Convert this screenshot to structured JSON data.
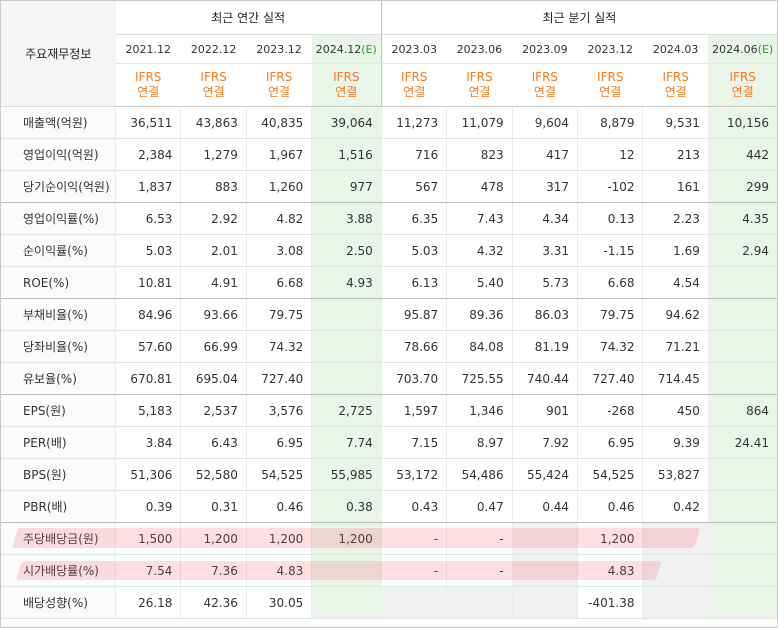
{
  "header": {
    "label": "주요재무정보",
    "annual_group": "최근 연간 실적",
    "quarter_group": "최근 분기 실적"
  },
  "periods": [
    {
      "date": "2021.12",
      "estimate": ""
    },
    {
      "date": "2022.12",
      "estimate": ""
    },
    {
      "date": "2023.12",
      "estimate": ""
    },
    {
      "date": "2024.12",
      "estimate": "(E)"
    },
    {
      "date": "2023.03",
      "estimate": ""
    },
    {
      "date": "2023.06",
      "estimate": ""
    },
    {
      "date": "2023.09",
      "estimate": ""
    },
    {
      "date": "2023.12",
      "estimate": ""
    },
    {
      "date": "2024.03",
      "estimate": ""
    },
    {
      "date": "2024.06",
      "estimate": "(E)"
    }
  ],
  "basis": {
    "line1": "IFRS",
    "line2": "연결"
  },
  "rows": [
    {
      "label": "매출액(억원)",
      "values": [
        "36,511",
        "43,863",
        "40,835",
        "39,064",
        "11,273",
        "11,079",
        "9,604",
        "8,879",
        "9,531",
        "10,156"
      ]
    },
    {
      "label": "영업이익(억원)",
      "values": [
        "2,384",
        "1,279",
        "1,967",
        "1,516",
        "716",
        "823",
        "417",
        "12",
        "213",
        "442"
      ]
    },
    {
      "label": "당기순이익(억원)",
      "values": [
        "1,837",
        "883",
        "1,260",
        "977",
        "567",
        "478",
        "317",
        "-102",
        "161",
        "299"
      ]
    },
    {
      "label": "영업이익률(%)",
      "values": [
        "6.53",
        "2.92",
        "4.82",
        "3.88",
        "6.35",
        "7.43",
        "4.34",
        "0.13",
        "2.23",
        "4.35"
      ]
    },
    {
      "label": "순이익률(%)",
      "values": [
        "5.03",
        "2.01",
        "3.08",
        "2.50",
        "5.03",
        "4.32",
        "3.31",
        "-1.15",
        "1.69",
        "2.94"
      ]
    },
    {
      "label": "ROE(%)",
      "values": [
        "10.81",
        "4.91",
        "6.68",
        "4.93",
        "6.13",
        "5.40",
        "5.73",
        "6.68",
        "4.54",
        ""
      ]
    },
    {
      "label": "부채비율(%)",
      "values": [
        "84.96",
        "93.66",
        "79.75",
        "",
        "95.87",
        "89.36",
        "86.03",
        "79.75",
        "94.62",
        ""
      ]
    },
    {
      "label": "당좌비율(%)",
      "values": [
        "57.60",
        "66.99",
        "74.32",
        "",
        "78.66",
        "84.08",
        "81.19",
        "74.32",
        "71.21",
        ""
      ]
    },
    {
      "label": "유보율(%)",
      "values": [
        "670.81",
        "695.04",
        "727.40",
        "",
        "703.70",
        "725.55",
        "740.44",
        "727.40",
        "714.45",
        ""
      ]
    },
    {
      "label": "EPS(원)",
      "values": [
        "5,183",
        "2,537",
        "3,576",
        "2,725",
        "1,597",
        "1,346",
        "901",
        "-268",
        "450",
        "864"
      ]
    },
    {
      "label": "PER(배)",
      "values": [
        "3.84",
        "6.43",
        "6.95",
        "7.74",
        "7.15",
        "8.97",
        "7.92",
        "6.95",
        "9.39",
        "24.41"
      ]
    },
    {
      "label": "BPS(원)",
      "values": [
        "51,306",
        "52,580",
        "54,525",
        "55,985",
        "53,172",
        "54,486",
        "55,424",
        "54,525",
        "53,827",
        ""
      ]
    },
    {
      "label": "PBR(배)",
      "values": [
        "0.39",
        "0.31",
        "0.46",
        "0.38",
        "0.43",
        "0.47",
        "0.44",
        "0.46",
        "0.42",
        ""
      ]
    },
    {
      "label": "주당배당금(원)",
      "values": [
        "1,500",
        "1,200",
        "1,200",
        "1,200",
        "-",
        "-",
        "",
        "1,200",
        "",
        ""
      ]
    },
    {
      "label": "시가배당률(%)",
      "values": [
        "7.54",
        "7.36",
        "4.83",
        "",
        "-",
        "-",
        "",
        "4.83",
        "",
        ""
      ]
    },
    {
      "label": "배당성향(%)",
      "values": [
        "26.18",
        "42.36",
        "30.05",
        "",
        "",
        "",
        "",
        "-401.38",
        "",
        ""
      ]
    }
  ],
  "colors": {
    "ifrs": "#f47c1e",
    "estimate_bg": "#eaf5ea",
    "negative": "#d01e1e",
    "highlight": "#f55a6e"
  }
}
